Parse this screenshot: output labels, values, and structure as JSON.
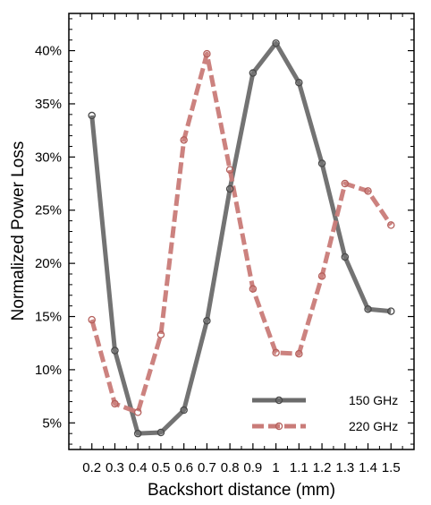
{
  "chart_data": {
    "type": "line",
    "xlabel": "Backshort distance (mm)",
    "ylabel": "Normalized Power Loss",
    "x": [
      0.2,
      0.3,
      0.4,
      0.5,
      0.6,
      0.7,
      0.8,
      0.9,
      1.0,
      1.1,
      1.2,
      1.3,
      1.4,
      1.5
    ],
    "x_tick_labels": [
      "0.2",
      "0.3",
      "0.4",
      "0.5",
      "0.6",
      "0.7",
      "0.8",
      "0.9",
      "1",
      "1.1",
      "1.2",
      "1.3",
      "1.4",
      "1.5"
    ],
    "xlim": [
      0.1,
      1.6
    ],
    "ylim": [
      0.025,
      0.435
    ],
    "y_ticks": [
      0.05,
      0.1,
      0.15,
      0.2,
      0.25,
      0.3,
      0.35,
      0.4
    ],
    "y_tick_labels": [
      "5%",
      "10%",
      "15%",
      "20%",
      "25%",
      "30%",
      "35%",
      "40%"
    ],
    "grid": false,
    "legend_position": "bottom-right",
    "series": [
      {
        "name": "150 GHz",
        "color": "#6b6b6b",
        "style": "solid",
        "values": [
          0.339,
          0.118,
          0.04,
          0.041,
          0.062,
          0.146,
          0.27,
          0.379,
          0.407,
          0.37,
          0.294,
          0.206,
          0.157,
          0.155
        ]
      },
      {
        "name": "220 GHz",
        "color": "#c97b78",
        "style": "dashed",
        "values": [
          0.147,
          0.068,
          0.06,
          0.133,
          0.316,
          0.397,
          0.288,
          0.176,
          0.116,
          0.115,
          0.188,
          0.275,
          0.268,
          0.236
        ]
      }
    ]
  }
}
